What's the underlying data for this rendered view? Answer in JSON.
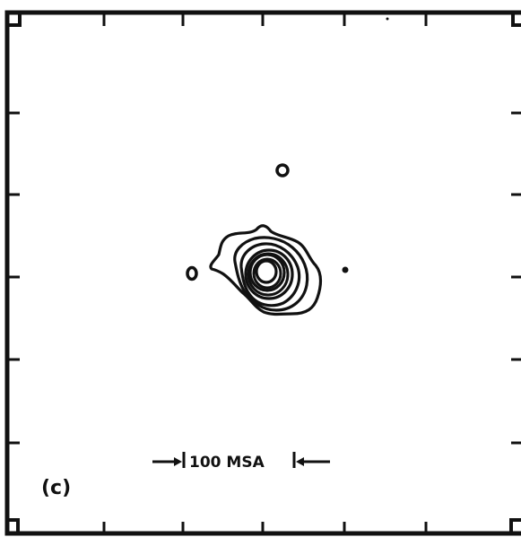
{
  "panel_label": "(c)",
  "scale_bar": {
    "label": "100 MSA"
  },
  "colors": {
    "ink": "#111111",
    "background": "#ffffff"
  }
}
